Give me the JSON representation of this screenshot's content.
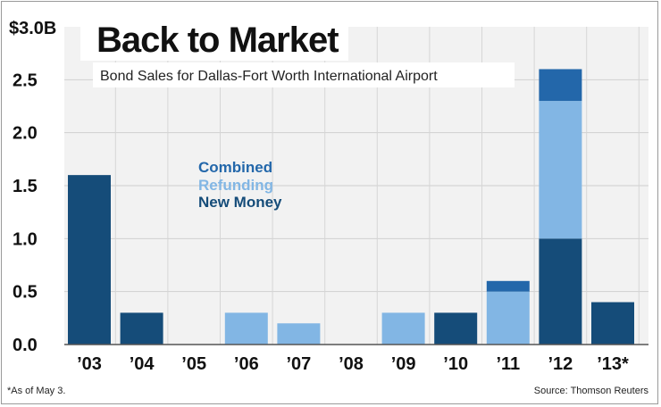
{
  "chart_data": {
    "type": "bar",
    "stacked": true,
    "title": "Back to Market",
    "subtitle": "Bond Sales for Dallas-Fort Worth International Airport",
    "ylabel_top": "$3.0B",
    "yticks": [
      "0.0",
      "0.5",
      "1.0",
      "1.5",
      "2.0",
      "2.5"
    ],
    "ylim": [
      0,
      3.0
    ],
    "categories": [
      "’03",
      "’04",
      "’05",
      "’06",
      "’07",
      "’08",
      "’09",
      "’10",
      "’11",
      "’12",
      "’13*"
    ],
    "series": [
      {
        "name": "New Money",
        "color": "#154c79",
        "values": [
          1.6,
          0.3,
          0,
          0,
          0,
          0,
          0,
          0.3,
          0,
          1.0,
          0.4
        ]
      },
      {
        "name": "Refunding",
        "color": "#82b6e4",
        "values": [
          0,
          0,
          0,
          0.3,
          0.2,
          0,
          0.3,
          0,
          0.5,
          1.3,
          0
        ]
      },
      {
        "name": "Combined",
        "color": "#2367aa",
        "values": [
          0,
          0,
          0,
          0,
          0,
          0,
          0,
          0,
          0.1,
          0.3,
          0
        ]
      }
    ],
    "legend_order": [
      "Combined",
      "Refunding",
      "New Money"
    ],
    "footnote": "*As of May 3.",
    "source": "Source: Thomson Reuters",
    "grid": true
  }
}
